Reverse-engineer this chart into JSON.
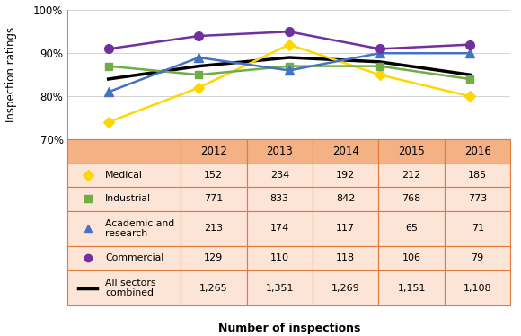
{
  "years": [
    2012,
    2013,
    2014,
    2015,
    2016
  ],
  "medical": [
    74,
    82,
    92,
    85,
    80
  ],
  "industrial": [
    87,
    85,
    87,
    87,
    84
  ],
  "academic": [
    81,
    89,
    86,
    90,
    90
  ],
  "commercial": [
    91,
    94,
    95,
    91,
    92
  ],
  "all_sectors": [
    84,
    87,
    89,
    88,
    85
  ],
  "medical_color": "#FFD700",
  "industrial_color": "#70AD47",
  "academic_color": "#4472C4",
  "commercial_color": "#7030A0",
  "all_sectors_color": "#000000",
  "table_header_bg": "#F4B183",
  "table_row_bg": "#FCE4D6",
  "table_border_color": "#E07B39",
  "ylabel": "Inspection ratings",
  "xlabel": "Number of inspections",
  "ylim_min": 70,
  "ylim_max": 100,
  "col_years": [
    "2012",
    "2013",
    "2014",
    "2015",
    "2016"
  ],
  "row_labels": [
    "Medical",
    "Industrial",
    "Academic and\nresearch",
    "Commercial",
    "All sectors\ncombined"
  ],
  "table_values": [
    [
      "152",
      "234",
      "192",
      "212",
      "185"
    ],
    [
      "771",
      "833",
      "842",
      "768",
      "773"
    ],
    [
      "213",
      "174",
      "117",
      "65",
      "71"
    ],
    [
      "129",
      "110",
      "118",
      "106",
      "79"
    ],
    [
      "1,265",
      "1,351",
      "1,269",
      "1,151",
      "1,108"
    ]
  ]
}
